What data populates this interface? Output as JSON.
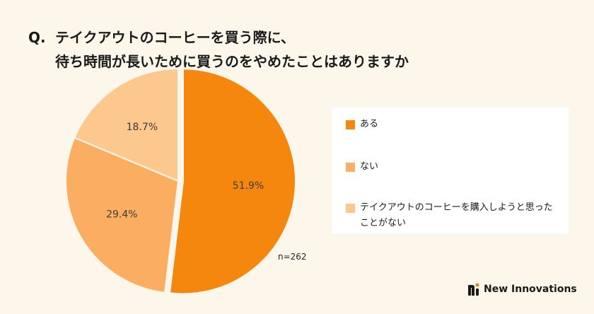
{
  "question": {
    "prefix": "Q.",
    "line1": "テイクアウトのコーヒーを買う際に、",
    "line2": "待ち時間が長いために買うのをやめたことはありますか"
  },
  "chart_data": {
    "type": "pie",
    "slices": [
      {
        "label": "ある",
        "value": 51.9,
        "display": "51.9%",
        "color": "#f5870f"
      },
      {
        "label": "ない",
        "value": 29.4,
        "display": "29.4%",
        "color": "#fbae61"
      },
      {
        "label": "テイクアウトのコーヒーを購入しようと思ったことがない",
        "value": 18.7,
        "display": "18.7%",
        "color": "#fcc88e"
      }
    ],
    "legend_position": "right",
    "n_label": "n=262"
  },
  "legend": {
    "items": [
      {
        "label": "ある",
        "color": "#f5870f"
      },
      {
        "label": "ない",
        "color": "#fbae61"
      },
      {
        "label": "テイクアウトのコーヒーを購入しようと思ったことがない",
        "color": "#fcc88e"
      }
    ]
  },
  "brand": {
    "name": "New Innovations",
    "logo_icon": "ni-logo-icon",
    "logo_color": "#e8831a"
  }
}
